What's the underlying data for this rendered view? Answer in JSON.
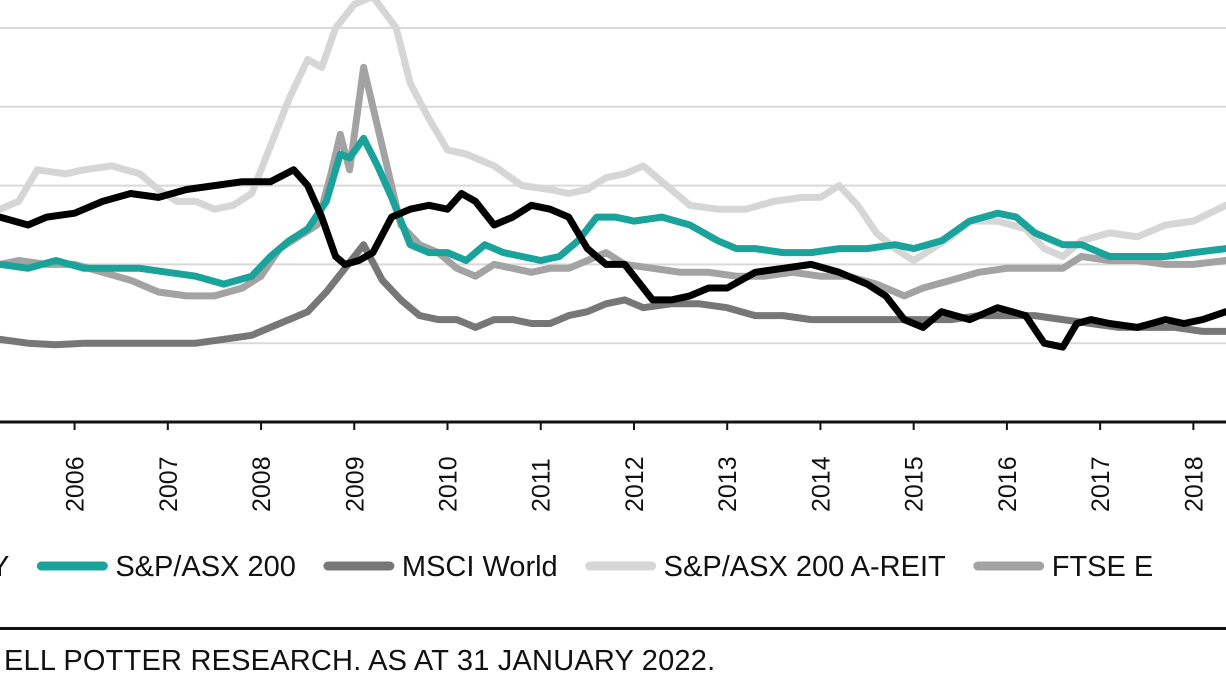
{
  "chart_data": {
    "type": "line",
    "x_domain": [
      2005.2,
      2018.35
    ],
    "ylim": [
      0,
      5
    ],
    "grid": true,
    "legend_position": "bottom",
    "xticks": [
      "2006",
      "2007",
      "2008",
      "2009",
      "2010",
      "2011",
      "2012",
      "2013",
      "2014",
      "2015",
      "2016",
      "2017",
      "2018"
    ],
    "series": [
      {
        "name": "",
        "legend_label": "Y",
        "color": "#000000",
        "points": [
          [
            2005.2,
            2.6
          ],
          [
            2005.5,
            2.5
          ],
          [
            2005.7,
            2.6
          ],
          [
            2006.0,
            2.65
          ],
          [
            2006.3,
            2.8
          ],
          [
            2006.6,
            2.9
          ],
          [
            2006.9,
            2.85
          ],
          [
            2007.2,
            2.95
          ],
          [
            2007.5,
            3.0
          ],
          [
            2007.8,
            3.05
          ],
          [
            2008.1,
            3.05
          ],
          [
            2008.35,
            3.2
          ],
          [
            2008.5,
            3.0
          ],
          [
            2008.65,
            2.6
          ],
          [
            2008.8,
            2.1
          ],
          [
            2008.9,
            2.0
          ],
          [
            2009.05,
            2.05
          ],
          [
            2009.2,
            2.15
          ],
          [
            2009.4,
            2.6
          ],
          [
            2009.6,
            2.7
          ],
          [
            2009.8,
            2.75
          ],
          [
            2010.0,
            2.7
          ],
          [
            2010.15,
            2.9
          ],
          [
            2010.3,
            2.8
          ],
          [
            2010.5,
            2.5
          ],
          [
            2010.7,
            2.6
          ],
          [
            2010.9,
            2.75
          ],
          [
            2011.1,
            2.7
          ],
          [
            2011.3,
            2.6
          ],
          [
            2011.5,
            2.2
          ],
          [
            2011.7,
            2.0
          ],
          [
            2011.9,
            2.0
          ],
          [
            2012.2,
            1.55
          ],
          [
            2012.4,
            1.55
          ],
          [
            2012.6,
            1.6
          ],
          [
            2012.8,
            1.7
          ],
          [
            2013.0,
            1.7
          ],
          [
            2013.3,
            1.9
          ],
          [
            2013.6,
            1.95
          ],
          [
            2013.9,
            2.0
          ],
          [
            2014.2,
            1.9
          ],
          [
            2014.5,
            1.75
          ],
          [
            2014.7,
            1.6
          ],
          [
            2014.9,
            1.3
          ],
          [
            2015.1,
            1.2
          ],
          [
            2015.3,
            1.4
          ],
          [
            2015.6,
            1.3
          ],
          [
            2015.9,
            1.45
          ],
          [
            2016.2,
            1.35
          ],
          [
            2016.4,
            1.0
          ],
          [
            2016.6,
            0.95
          ],
          [
            2016.75,
            1.25
          ],
          [
            2016.9,
            1.3
          ],
          [
            2017.1,
            1.25
          ],
          [
            2017.4,
            1.2
          ],
          [
            2017.7,
            1.3
          ],
          [
            2017.9,
            1.25
          ],
          [
            2018.1,
            1.3
          ],
          [
            2018.35,
            1.4
          ]
        ]
      },
      {
        "name": "S&P/ASX 200",
        "legend_label": "S&P/ASX 200",
        "color": "#1aa39a",
        "points": [
          [
            2005.2,
            2.0
          ],
          [
            2005.5,
            1.95
          ],
          [
            2005.8,
            2.05
          ],
          [
            2006.1,
            1.95
          ],
          [
            2006.4,
            1.95
          ],
          [
            2006.7,
            1.95
          ],
          [
            2007.0,
            1.9
          ],
          [
            2007.3,
            1.85
          ],
          [
            2007.6,
            1.75
          ],
          [
            2007.9,
            1.85
          ],
          [
            2008.1,
            2.1
          ],
          [
            2008.3,
            2.3
          ],
          [
            2008.5,
            2.45
          ],
          [
            2008.7,
            2.8
          ],
          [
            2008.85,
            3.4
          ],
          [
            2008.95,
            3.35
          ],
          [
            2009.1,
            3.6
          ],
          [
            2009.25,
            3.25
          ],
          [
            2009.4,
            2.85
          ],
          [
            2009.6,
            2.25
          ],
          [
            2009.8,
            2.15
          ],
          [
            2010.0,
            2.15
          ],
          [
            2010.2,
            2.05
          ],
          [
            2010.4,
            2.25
          ],
          [
            2010.6,
            2.15
          ],
          [
            2010.8,
            2.1
          ],
          [
            2011.0,
            2.05
          ],
          [
            2011.2,
            2.1
          ],
          [
            2011.4,
            2.3
          ],
          [
            2011.6,
            2.6
          ],
          [
            2011.8,
            2.6
          ],
          [
            2012.0,
            2.55
          ],
          [
            2012.3,
            2.6
          ],
          [
            2012.6,
            2.5
          ],
          [
            2012.9,
            2.3
          ],
          [
            2013.1,
            2.2
          ],
          [
            2013.3,
            2.2
          ],
          [
            2013.6,
            2.15
          ],
          [
            2013.9,
            2.15
          ],
          [
            2014.2,
            2.2
          ],
          [
            2014.5,
            2.2
          ],
          [
            2014.8,
            2.25
          ],
          [
            2015.0,
            2.2
          ],
          [
            2015.3,
            2.3
          ],
          [
            2015.6,
            2.55
          ],
          [
            2015.9,
            2.65
          ],
          [
            2016.1,
            2.6
          ],
          [
            2016.3,
            2.4
          ],
          [
            2016.6,
            2.25
          ],
          [
            2016.8,
            2.25
          ],
          [
            2017.1,
            2.1
          ],
          [
            2017.4,
            2.1
          ],
          [
            2017.7,
            2.1
          ],
          [
            2018.0,
            2.15
          ],
          [
            2018.35,
            2.2
          ]
        ]
      },
      {
        "name": "MSCI World",
        "legend_label": "MSCI World",
        "color": "#777777",
        "points": [
          [
            2005.2,
            1.05
          ],
          [
            2005.5,
            1.0
          ],
          [
            2005.8,
            0.98
          ],
          [
            2006.1,
            1.0
          ],
          [
            2006.4,
            1.0
          ],
          [
            2006.7,
            1.0
          ],
          [
            2007.0,
            1.0
          ],
          [
            2007.3,
            1.0
          ],
          [
            2007.6,
            1.05
          ],
          [
            2007.9,
            1.1
          ],
          [
            2008.1,
            1.2
          ],
          [
            2008.3,
            1.3
          ],
          [
            2008.5,
            1.4
          ],
          [
            2008.7,
            1.65
          ],
          [
            2008.9,
            1.95
          ],
          [
            2009.1,
            2.25
          ],
          [
            2009.3,
            1.8
          ],
          [
            2009.5,
            1.55
          ],
          [
            2009.7,
            1.35
          ],
          [
            2009.9,
            1.3
          ],
          [
            2010.1,
            1.3
          ],
          [
            2010.3,
            1.2
          ],
          [
            2010.5,
            1.3
          ],
          [
            2010.7,
            1.3
          ],
          [
            2010.9,
            1.25
          ],
          [
            2011.1,
            1.25
          ],
          [
            2011.3,
            1.35
          ],
          [
            2011.5,
            1.4
          ],
          [
            2011.7,
            1.5
          ],
          [
            2011.9,
            1.55
          ],
          [
            2012.1,
            1.45
          ],
          [
            2012.4,
            1.5
          ],
          [
            2012.7,
            1.5
          ],
          [
            2013.0,
            1.45
          ],
          [
            2013.3,
            1.35
          ],
          [
            2013.6,
            1.35
          ],
          [
            2013.9,
            1.3
          ],
          [
            2014.2,
            1.3
          ],
          [
            2014.5,
            1.3
          ],
          [
            2014.8,
            1.3
          ],
          [
            2015.1,
            1.3
          ],
          [
            2015.4,
            1.3
          ],
          [
            2015.7,
            1.35
          ],
          [
            2016.0,
            1.35
          ],
          [
            2016.3,
            1.35
          ],
          [
            2016.6,
            1.3
          ],
          [
            2016.9,
            1.25
          ],
          [
            2017.2,
            1.2
          ],
          [
            2017.5,
            1.2
          ],
          [
            2017.8,
            1.2
          ],
          [
            2018.1,
            1.15
          ],
          [
            2018.35,
            1.15
          ]
        ]
      },
      {
        "name": "S&P/ASX 200 A-REIT",
        "legend_label": "S&P/ASX 200 A-REIT",
        "color": "#d6d6d6",
        "points": [
          [
            2005.2,
            2.7
          ],
          [
            2005.4,
            2.8
          ],
          [
            2005.6,
            3.2
          ],
          [
            2005.9,
            3.15
          ],
          [
            2006.1,
            3.2
          ],
          [
            2006.4,
            3.25
          ],
          [
            2006.7,
            3.15
          ],
          [
            2006.9,
            2.95
          ],
          [
            2007.1,
            2.8
          ],
          [
            2007.3,
            2.8
          ],
          [
            2007.5,
            2.7
          ],
          [
            2007.7,
            2.75
          ],
          [
            2007.9,
            2.9
          ],
          [
            2008.1,
            3.5
          ],
          [
            2008.3,
            4.1
          ],
          [
            2008.5,
            4.6
          ],
          [
            2008.65,
            4.5
          ],
          [
            2008.8,
            5.0
          ],
          [
            2009.0,
            5.3
          ],
          [
            2009.2,
            5.4
          ],
          [
            2009.45,
            5.0
          ],
          [
            2009.6,
            4.3
          ],
          [
            2009.8,
            3.85
          ],
          [
            2010.0,
            3.45
          ],
          [
            2010.2,
            3.4
          ],
          [
            2010.5,
            3.25
          ],
          [
            2010.8,
            3.0
          ],
          [
            2011.1,
            2.95
          ],
          [
            2011.3,
            2.9
          ],
          [
            2011.5,
            2.95
          ],
          [
            2011.7,
            3.1
          ],
          [
            2011.9,
            3.15
          ],
          [
            2012.1,
            3.25
          ],
          [
            2012.3,
            3.05
          ],
          [
            2012.6,
            2.75
          ],
          [
            2012.9,
            2.7
          ],
          [
            2013.2,
            2.7
          ],
          [
            2013.5,
            2.8
          ],
          [
            2013.8,
            2.85
          ],
          [
            2014.0,
            2.85
          ],
          [
            2014.2,
            3.0
          ],
          [
            2014.4,
            2.75
          ],
          [
            2014.6,
            2.4
          ],
          [
            2014.8,
            2.2
          ],
          [
            2015.0,
            2.05
          ],
          [
            2015.2,
            2.2
          ],
          [
            2015.4,
            2.35
          ],
          [
            2015.6,
            2.55
          ],
          [
            2015.9,
            2.55
          ],
          [
            2016.2,
            2.45
          ],
          [
            2016.4,
            2.2
          ],
          [
            2016.6,
            2.1
          ],
          [
            2016.8,
            2.3
          ],
          [
            2017.1,
            2.4
          ],
          [
            2017.4,
            2.35
          ],
          [
            2017.7,
            2.5
          ],
          [
            2018.0,
            2.55
          ],
          [
            2018.35,
            2.75
          ]
        ]
      },
      {
        "name": "FTSE E",
        "legend_label": "FTSE E",
        "color": "#a3a3a3",
        "points": [
          [
            2005.2,
            2.0
          ],
          [
            2005.4,
            2.05
          ],
          [
            2005.7,
            2.0
          ],
          [
            2006.0,
            2.0
          ],
          [
            2006.3,
            1.9
          ],
          [
            2006.6,
            1.8
          ],
          [
            2006.9,
            1.65
          ],
          [
            2007.2,
            1.6
          ],
          [
            2007.5,
            1.6
          ],
          [
            2007.8,
            1.7
          ],
          [
            2008.0,
            1.85
          ],
          [
            2008.2,
            2.2
          ],
          [
            2008.4,
            2.35
          ],
          [
            2008.6,
            2.5
          ],
          [
            2008.75,
            3.15
          ],
          [
            2008.85,
            3.65
          ],
          [
            2008.95,
            3.2
          ],
          [
            2009.1,
            4.5
          ],
          [
            2009.2,
            4.0
          ],
          [
            2009.35,
            3.25
          ],
          [
            2009.5,
            2.5
          ],
          [
            2009.7,
            2.25
          ],
          [
            2009.9,
            2.15
          ],
          [
            2010.1,
            1.95
          ],
          [
            2010.3,
            1.85
          ],
          [
            2010.5,
            2.0
          ],
          [
            2010.7,
            1.95
          ],
          [
            2010.9,
            1.9
          ],
          [
            2011.1,
            1.95
          ],
          [
            2011.3,
            1.95
          ],
          [
            2011.5,
            2.05
          ],
          [
            2011.7,
            2.15
          ],
          [
            2011.9,
            2.0
          ],
          [
            2012.2,
            1.95
          ],
          [
            2012.5,
            1.9
          ],
          [
            2012.8,
            1.9
          ],
          [
            2013.1,
            1.85
          ],
          [
            2013.4,
            1.85
          ],
          [
            2013.7,
            1.9
          ],
          [
            2014.0,
            1.85
          ],
          [
            2014.3,
            1.85
          ],
          [
            2014.6,
            1.75
          ],
          [
            2014.9,
            1.6
          ],
          [
            2015.1,
            1.7
          ],
          [
            2015.4,
            1.8
          ],
          [
            2015.7,
            1.9
          ],
          [
            2016.0,
            1.95
          ],
          [
            2016.3,
            1.95
          ],
          [
            2016.6,
            1.95
          ],
          [
            2016.8,
            2.1
          ],
          [
            2017.1,
            2.05
          ],
          [
            2017.4,
            2.05
          ],
          [
            2017.7,
            2.0
          ],
          [
            2018.0,
            2.0
          ],
          [
            2018.35,
            2.05
          ]
        ]
      }
    ]
  },
  "source_note": "ELL POTTER RESEARCH. AS AT 31 JANUARY 2022."
}
